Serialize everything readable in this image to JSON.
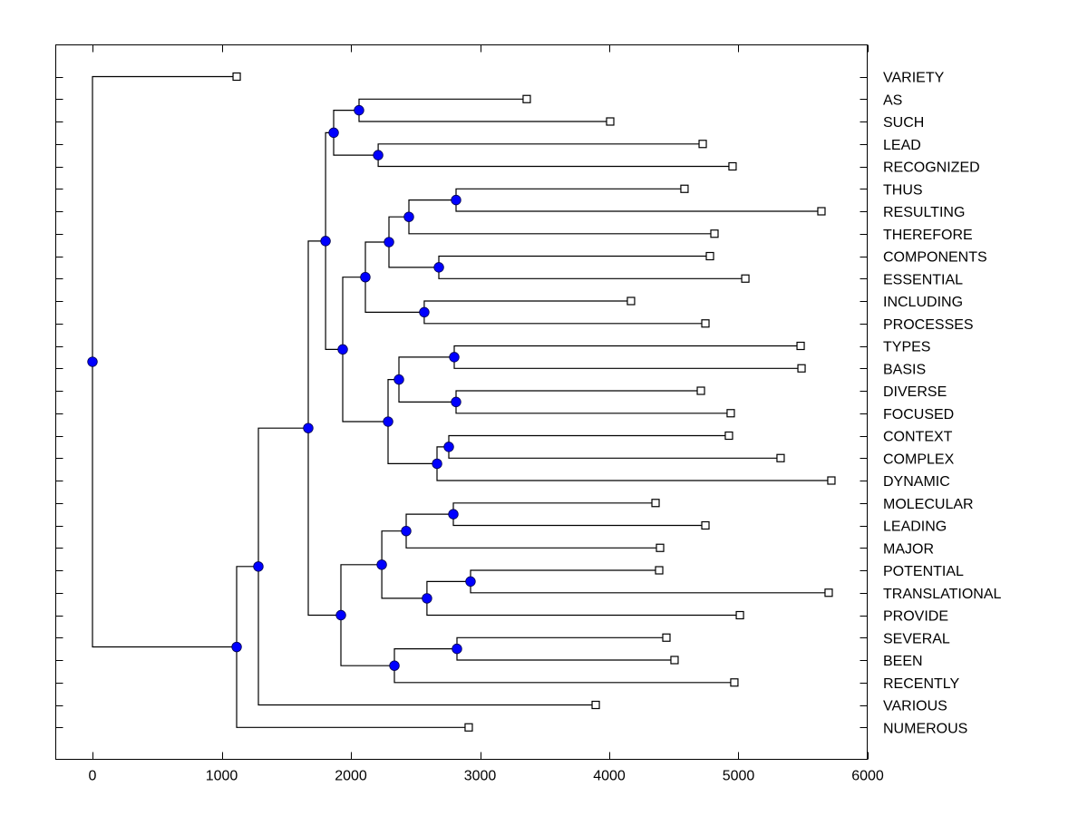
{
  "chart_data": {
    "type": "dendrogram",
    "title": "",
    "xlabel": "",
    "ylabel": "",
    "xlim": [
      -290,
      6000
    ],
    "xticks": [
      0,
      1000,
      2000,
      3000,
      4000,
      5000,
      6000
    ],
    "xtick_labels": [
      "0",
      "1000",
      "2000",
      "3000",
      "4000",
      "5000",
      "6000"
    ],
    "grid": false,
    "node_color": "#0000ff",
    "leaf_marker": "open-square",
    "leaves": [
      {
        "label": "VARIETY",
        "value": 1116
      },
      {
        "label": "AS",
        "value": 3361
      },
      {
        "label": "SUCH",
        "value": 4007
      },
      {
        "label": "LEAD",
        "value": 4723
      },
      {
        "label": "RECOGNIZED",
        "value": 4954
      },
      {
        "label": "THUS",
        "value": 4582
      },
      {
        "label": "RESULTING",
        "value": 5642
      },
      {
        "label": "THEREFORE",
        "value": 4814
      },
      {
        "label": "COMPONENTS",
        "value": 4779
      },
      {
        "label": "ESSENTIAL",
        "value": 5053
      },
      {
        "label": "INCLUDING",
        "value": 4168
      },
      {
        "label": "PROCESSES",
        "value": 4744
      },
      {
        "label": "TYPES",
        "value": 5481
      },
      {
        "label": "BASIS",
        "value": 5488
      },
      {
        "label": "DIVERSE",
        "value": 4709
      },
      {
        "label": "FOCUSED",
        "value": 4940
      },
      {
        "label": "CONTEXT",
        "value": 4926
      },
      {
        "label": "COMPLEX",
        "value": 5326
      },
      {
        "label": "DYNAMIC",
        "value": 5719
      },
      {
        "label": "MOLECULAR",
        "value": 4358
      },
      {
        "label": "LEADING",
        "value": 4744
      },
      {
        "label": "MAJOR",
        "value": 4393
      },
      {
        "label": "POTENTIAL",
        "value": 4386
      },
      {
        "label": "TRANSLATIONAL",
        "value": 5698
      },
      {
        "label": "PROVIDE",
        "value": 5011
      },
      {
        "label": "SEVERAL",
        "value": 4442
      },
      {
        "label": "BEEN",
        "value": 4505
      },
      {
        "label": "RECENTLY",
        "value": 4968
      },
      {
        "label": "VARIOUS",
        "value": 3895
      },
      {
        "label": "NUMEROUS",
        "value": 2912
      }
    ],
    "tree": {
      "value": 0,
      "children": [
        {
          "leaf": 0
        },
        {
          "value": 1116,
          "children": [
            {
              "value": 1284,
              "children": [
                {
                  "value": 1670,
                  "children": [
                    {
                      "value": 1804,
                      "children": [
                        {
                          "value": 1867,
                          "children": [
                            {
                              "value": 2063,
                              "children": [
                                {
                                  "leaf": 1
                                },
                                {
                                  "leaf": 2
                                }
                              ]
                            },
                            {
                              "value": 2211,
                              "children": [
                                {
                                  "leaf": 3
                                },
                                {
                                  "leaf": 4
                                }
                              ]
                            }
                          ]
                        },
                        {
                          "value": 1937,
                          "children": [
                            {
                              "value": 2112,
                              "children": [
                                {
                                  "value": 2295,
                                  "children": [
                                    {
                                      "value": 2449,
                                      "children": [
                                        {
                                          "value": 2814,
                                          "children": [
                                            {
                                              "leaf": 5
                                            },
                                            {
                                              "leaf": 6
                                            }
                                          ]
                                        },
                                        {
                                          "leaf": 7
                                        }
                                      ]
                                    },
                                    {
                                      "value": 2681,
                                      "children": [
                                        {
                                          "leaf": 8
                                        },
                                        {
                                          "leaf": 9
                                        }
                                      ]
                                    }
                                  ]
                                },
                                {
                                  "value": 2568,
                                  "children": [
                                    {
                                      "leaf": 10
                                    },
                                    {
                                      "leaf": 11
                                    }
                                  ]
                                }
                              ]
                            },
                            {
                              "value": 2288,
                              "children": [
                                {
                                  "value": 2372,
                                  "children": [
                                    {
                                      "value": 2800,
                                      "children": [
                                        {
                                          "leaf": 12
                                        },
                                        {
                                          "leaf": 13
                                        }
                                      ]
                                    },
                                    {
                                      "value": 2814,
                                      "children": [
                                        {
                                          "leaf": 14
                                        },
                                        {
                                          "leaf": 15
                                        }
                                      ]
                                    }
                                  ]
                                },
                                {
                                  "value": 2667,
                                  "children": [
                                    {
                                      "value": 2758,
                                      "children": [
                                        {
                                          "leaf": 16
                                        },
                                        {
                                          "leaf": 17
                                        }
                                      ]
                                    },
                                    {
                                      "leaf": 18
                                    }
                                  ]
                                }
                              ]
                            }
                          ]
                        }
                      ]
                    },
                    {
                      "value": 1923,
                      "children": [
                        {
                          "value": 2239,
                          "children": [
                            {
                              "value": 2428,
                              "children": [
                                {
                                  "value": 2793,
                                  "children": [
                                    {
                                      "leaf": 19
                                    },
                                    {
                                      "leaf": 20
                                    }
                                  ]
                                },
                                {
                                  "leaf": 21
                                }
                              ]
                            },
                            {
                              "value": 2589,
                              "children": [
                                {
                                  "value": 2926,
                                  "children": [
                                    {
                                      "leaf": 22
                                    },
                                    {
                                      "leaf": 23
                                    }
                                  ]
                                },
                                {
                                  "leaf": 24
                                }
                              ]
                            }
                          ]
                        },
                        {
                          "value": 2337,
                          "children": [
                            {
                              "value": 2821,
                              "children": [
                                {
                                  "leaf": 25
                                },
                                {
                                  "leaf": 26
                                }
                              ]
                            },
                            {
                              "leaf": 27
                            }
                          ]
                        }
                      ]
                    }
                  ]
                },
                {
                  "leaf": 28
                }
              ]
            },
            {
              "leaf": 29
            }
          ]
        }
      ]
    }
  }
}
